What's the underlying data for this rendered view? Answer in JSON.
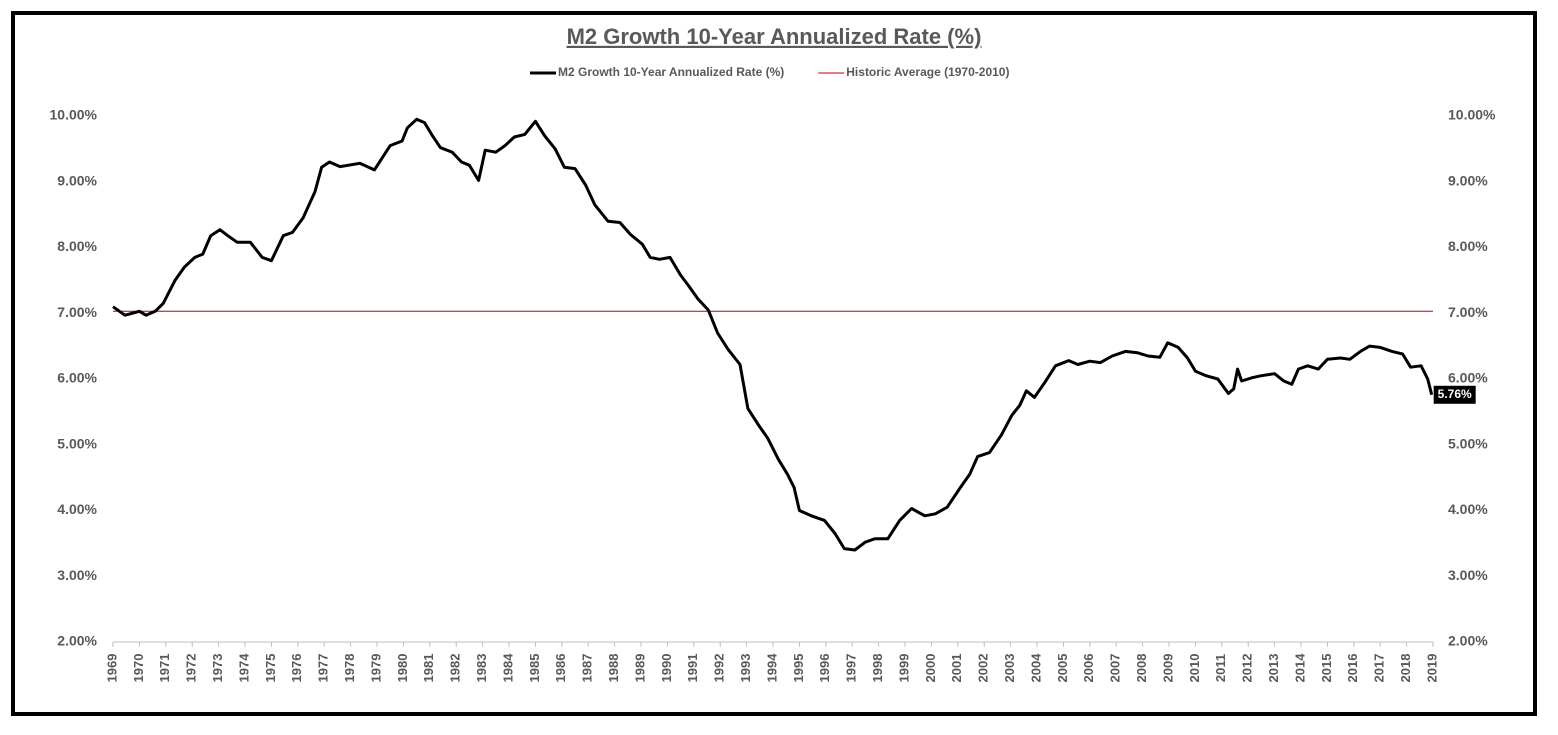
{
  "chart_data": {
    "type": "line",
    "title": "M2 Growth 10-Year Annualized Rate (%)",
    "xlim": [
      1969,
      2019
    ],
    "xticks": [
      1969,
      1970,
      1971,
      1972,
      1973,
      1974,
      1975,
      1976,
      1977,
      1978,
      1979,
      1980,
      1981,
      1982,
      1983,
      1984,
      1985,
      1986,
      1987,
      1988,
      1989,
      1990,
      1991,
      1992,
      1993,
      1994,
      1995,
      1996,
      1997,
      1998,
      1999,
      2000,
      2001,
      2002,
      2003,
      2004,
      2005,
      2006,
      2007,
      2008,
      2009,
      2010,
      2011,
      2012,
      2013,
      2014,
      2015,
      2016,
      2017,
      2018,
      2019
    ],
    "ylim": [
      2,
      10
    ],
    "yticks": [
      {
        "value": 2,
        "label": "2.00%"
      },
      {
        "value": 3,
        "label": "3.00%"
      },
      {
        "value": 4,
        "label": "4.00%"
      },
      {
        "value": 5,
        "label": "5.00%"
      },
      {
        "value": 6,
        "label": "6.00%"
      },
      {
        "value": 7,
        "label": "7.00%"
      },
      {
        "value": 8,
        "label": "8.00%"
      },
      {
        "value": 9,
        "label": "9.00%"
      },
      {
        "value": 10,
        "label": "10.00%"
      }
    ],
    "y2lim": [
      2,
      10
    ],
    "y2ticks": [
      {
        "value": 2,
        "label": "2.00%"
      },
      {
        "value": 3,
        "label": "3.00%"
      },
      {
        "value": 4,
        "label": "4.00%"
      },
      {
        "value": 5,
        "label": "5.00%"
      },
      {
        "value": 6,
        "label": "6.00%"
      },
      {
        "value": 7,
        "label": "7.00%"
      },
      {
        "value": 8,
        "label": "8.00%"
      },
      {
        "value": 9,
        "label": "9.00%"
      },
      {
        "value": 10,
        "label": "10.00%"
      }
    ],
    "grid": false,
    "legend": "top",
    "last_value_label": "5.76%",
    "series": [
      {
        "name": "M2 Growth 10-Year Annualized Rate (%)",
        "color": "#000000",
        "width": 3,
        "x": [
          1969,
          1969.45,
          1970,
          1970.25,
          1970.6,
          1970.9,
          1971.35,
          1971.7,
          1972.1,
          1972.4,
          1972.7,
          1973.05,
          1973.35,
          1973.7,
          1974.2,
          1974.65,
          1975,
          1975.45,
          1975.8,
          1976.2,
          1976.65,
          1976.9,
          1977.2,
          1977.6,
          1978.35,
          1978.9,
          1979.5,
          1979.95,
          1980.15,
          1980.5,
          1980.8,
          1981.1,
          1981.4,
          1981.85,
          1982.2,
          1982.5,
          1982.85,
          1983.1,
          1983.5,
          1983.85,
          1984.2,
          1984.6,
          1985,
          1985.35,
          1985.75,
          1986.1,
          1986.5,
          1986.9,
          1987.25,
          1987.75,
          1988.2,
          1988.6,
          1989.05,
          1989.35,
          1989.7,
          1990.1,
          1990.5,
          1990.8,
          1991.15,
          1991.55,
          1991.9,
          1992.3,
          1992.75,
          1993.05,
          1993.45,
          1993.8,
          1994.2,
          1994.55,
          1994.8,
          1995,
          1995.45,
          1995.95,
          1996.35,
          1996.7,
          1997.1,
          1997.5,
          1997.85,
          1998.35,
          1998.8,
          1999.25,
          1999.75,
          2000.15,
          2000.6,
          2001.1,
          2001.45,
          2001.75,
          2002.2,
          2002.65,
          2003.05,
          2003.35,
          2003.6,
          2003.9,
          2004.3,
          2004.7,
          2005.2,
          2005.55,
          2006,
          2006.4,
          2006.85,
          2007.35,
          2007.8,
          2008.2,
          2008.65,
          2008.95,
          2009.35,
          2009.7,
          2010,
          2010.4,
          2010.85,
          2011.25,
          2011.45,
          2011.6,
          2011.75,
          2012.15,
          2012.5,
          2013,
          2013.35,
          2013.65,
          2013.9,
          2014.25,
          2014.65,
          2015,
          2015.5,
          2015.85,
          2016.25,
          2016.6,
          2017,
          2017.45,
          2017.85,
          2018.15,
          2018.55,
          2018.8,
          2018.95
        ],
        "values": [
          7.1,
          6.97,
          7.03,
          6.97,
          7.03,
          7.15,
          7.5,
          7.7,
          7.85,
          7.9,
          8.18,
          8.27,
          8.18,
          8.08,
          8.08,
          7.85,
          7.8,
          8.18,
          8.23,
          8.45,
          8.85,
          9.22,
          9.3,
          9.23,
          9.28,
          9.18,
          9.55,
          9.62,
          9.82,
          9.95,
          9.9,
          9.7,
          9.52,
          9.45,
          9.3,
          9.25,
          9.02,
          9.48,
          9.45,
          9.55,
          9.68,
          9.72,
          9.92,
          9.7,
          9.5,
          9.22,
          9.2,
          8.95,
          8.65,
          8.4,
          8.38,
          8.2,
          8.05,
          7.85,
          7.82,
          7.85,
          7.58,
          7.42,
          7.22,
          7.05,
          6.7,
          6.45,
          6.22,
          5.55,
          5.3,
          5.1,
          4.78,
          4.55,
          4.35,
          4.0,
          3.92,
          3.85,
          3.65,
          3.42,
          3.4,
          3.52,
          3.57,
          3.57,
          3.85,
          4.03,
          3.92,
          3.95,
          4.05,
          4.35,
          4.55,
          4.82,
          4.88,
          5.15,
          5.45,
          5.6,
          5.82,
          5.72,
          5.95,
          6.2,
          6.28,
          6.22,
          6.27,
          6.25,
          6.35,
          6.42,
          6.4,
          6.35,
          6.33,
          6.55,
          6.48,
          6.32,
          6.12,
          6.05,
          6.0,
          5.78,
          5.85,
          6.15,
          5.97,
          6.02,
          6.05,
          6.08,
          5.97,
          5.92,
          6.15,
          6.2,
          6.15,
          6.3,
          6.32,
          6.3,
          6.42,
          6.5,
          6.48,
          6.42,
          6.38,
          6.18,
          6.2,
          6.0,
          5.76
        ]
      },
      {
        "name": "Historic Average (1970-2010)",
        "color": "#c00000",
        "width": 1,
        "x": [
          1969,
          2019
        ],
        "values": [
          7.03,
          7.03
        ]
      }
    ]
  }
}
